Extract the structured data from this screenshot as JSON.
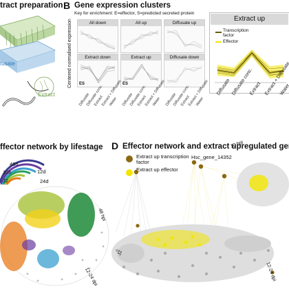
{
  "panel_a": {
    "title": "tract preparation",
    "label_diffusate": "fusate",
    "label_extract": "Extract"
  },
  "panel_b": {
    "letter": "B",
    "title": "Gene expression clusters",
    "key": "Key for enrichment: E=effector, S=predicted secreted protein",
    "ylabel": "Centered normalised expression",
    "clusters": [
      {
        "label": "All down",
        "mark": ""
      },
      {
        "label": "All up",
        "mark": ""
      },
      {
        "label": "Diffusate up",
        "mark": ""
      },
      {
        "label": "Extract down",
        "mark": "ES"
      },
      {
        "label": "Extract up",
        "mark": "ES"
      },
      {
        "label": "Diffusate down",
        "mark": ""
      }
    ],
    "xticks": [
      "Diffusate",
      "Diffusate conc.",
      "Extract",
      "Extract + Diffusate",
      "Water"
    ]
  },
  "panel_extract": {
    "title": "Extract up",
    "legend": [
      {
        "label": "Transcription factor",
        "color": "#6b5a00"
      },
      {
        "label": "Effector",
        "color": "#f2e600"
      }
    ],
    "xticks": [
      "Diffusate",
      "Diffusate conc.",
      "Extract",
      "Extract + Diffusate",
      "Water"
    ]
  },
  "panel_c": {
    "title": "ffector network by lifestage",
    "ring_labels": [
      "48h",
      "10h",
      "12d",
      "J2",
      "24d"
    ],
    "side_labels": [
      "48 hpi",
      "12-24 dpi"
    ]
  },
  "panel_d": {
    "letter": "D",
    "title": "Effector network and extract upregulated genes",
    "legend": [
      {
        "label": "Extract up transcription factor",
        "color": "#8b6914"
      },
      {
        "label": "Extract up effector",
        "color": "#f2e600"
      }
    ],
    "gene": "Hsc_gene_14352",
    "side_labels": [
      "10 hpi",
      "J2",
      "12-24 dpi"
    ]
  },
  "colors": {
    "tf": "#8b6914",
    "effector": "#f2e600",
    "grey": "#9a9a9a"
  }
}
